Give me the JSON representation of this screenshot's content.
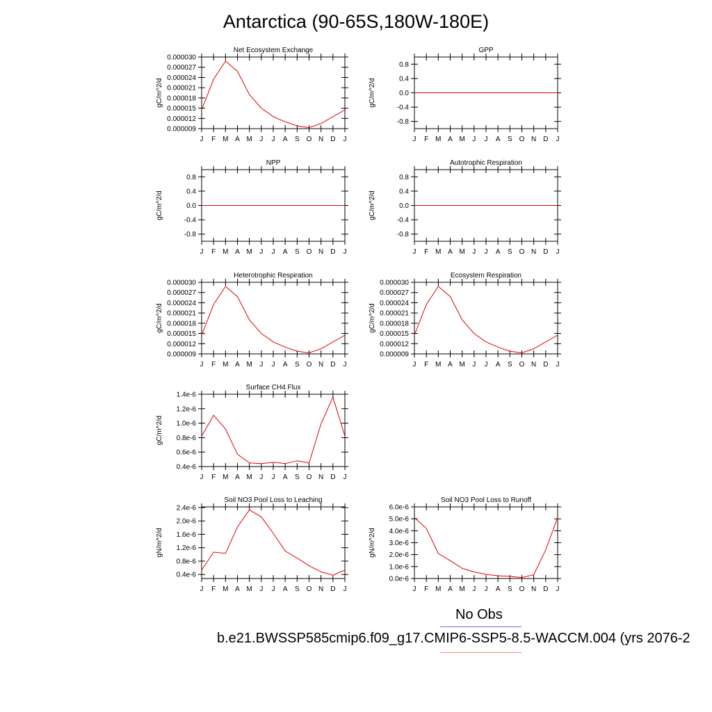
{
  "page": {
    "title": "Antarctica (90-65S,180W-180E)",
    "legend": {
      "obs_label": "No Obs",
      "case_label": "b.e21.BWSSP585cmip6.f09_g17.CMIP6-SSP5-8.5-WACCM.004 (yrs 2076-2",
      "obs_color": "#6a6aff",
      "case_color": "#ff8080"
    }
  },
  "chart_data": [
    {
      "id": "nee",
      "type": "line",
      "title": "Net Ecosystem Exchange",
      "xlabel": "",
      "ylabel": "gC/m^2/d",
      "x": [
        "J",
        "F",
        "M",
        "A",
        "M",
        "J",
        "J",
        "A",
        "S",
        "O",
        "N",
        "D",
        "J"
      ],
      "ylim": [
        9e-06,
        3e-05
      ],
      "yticks": [
        "0.000030",
        "0.000027",
        "0.000024",
        "0.000021",
        "0.000018",
        "0.000015",
        "0.000012",
        "0.000009"
      ],
      "ytick_values": [
        3e-05,
        2.7e-05,
        2.4e-05,
        2.1e-05,
        1.8e-05,
        1.5e-05,
        1.2e-05,
        9e-06
      ],
      "series": [
        {
          "values": [
            1.45e-05,
            2.35e-05,
            2.88e-05,
            2.58e-05,
            1.9e-05,
            1.5e-05,
            1.25e-05,
            1.1e-05,
            9.8e-06,
            9.3e-06,
            1.05e-05,
            1.25e-05,
            1.45e-05
          ],
          "color": "#e00000"
        }
      ]
    },
    {
      "id": "gpp",
      "type": "line",
      "title": "GPP",
      "xlabel": "",
      "ylabel": "gC/m^2/d",
      "x": [
        "J",
        "F",
        "M",
        "A",
        "M",
        "J",
        "J",
        "A",
        "S",
        "O",
        "N",
        "D",
        "J"
      ],
      "ylim": [
        -1,
        1
      ],
      "yticks": [
        "0.8",
        "0.4",
        "0.0",
        "-0.4",
        "-0.8"
      ],
      "ytick_values": [
        0.8,
        0.4,
        0,
        -0.4,
        -0.8
      ],
      "series": [
        {
          "values": [
            0,
            0,
            0,
            0,
            0,
            0,
            0,
            0,
            0,
            0,
            0,
            0,
            0
          ],
          "color": "#e00000"
        }
      ]
    },
    {
      "id": "npp",
      "type": "line",
      "title": "NPP",
      "xlabel": "",
      "ylabel": "gC/m^2/d",
      "x": [
        "J",
        "F",
        "M",
        "A",
        "M",
        "J",
        "J",
        "A",
        "S",
        "O",
        "N",
        "D",
        "J"
      ],
      "ylim": [
        -1,
        1
      ],
      "yticks": [
        "0.8",
        "0.4",
        "0.0",
        "-0.4",
        "-0.8"
      ],
      "ytick_values": [
        0.8,
        0.4,
        0,
        -0.4,
        -0.8
      ],
      "series": [
        {
          "values": [
            0,
            0,
            0,
            0,
            0,
            0,
            0,
            0,
            0,
            0,
            0,
            0,
            0
          ],
          "color": "#e00000"
        }
      ]
    },
    {
      "id": "ar",
      "type": "line",
      "title": "Autotrophic Respiration",
      "xlabel": "",
      "ylabel": "gC/m^2/d",
      "x": [
        "J",
        "F",
        "M",
        "A",
        "M",
        "J",
        "J",
        "A",
        "S",
        "O",
        "N",
        "D",
        "J"
      ],
      "ylim": [
        -1,
        1
      ],
      "yticks": [
        "0.8",
        "0.4",
        "0.0",
        "-0.4",
        "-0.8"
      ],
      "ytick_values": [
        0.8,
        0.4,
        0,
        -0.4,
        -0.8
      ],
      "series": [
        {
          "values": [
            0,
            0,
            0,
            0,
            0,
            0,
            0,
            0,
            0,
            0,
            0,
            0,
            0
          ],
          "color": "#e00000"
        }
      ]
    },
    {
      "id": "hr",
      "type": "line",
      "title": "Heterotrophic Respiration",
      "xlabel": "",
      "ylabel": "gC/m^2/d",
      "x": [
        "J",
        "F",
        "M",
        "A",
        "M",
        "J",
        "J",
        "A",
        "S",
        "O",
        "N",
        "D",
        "J"
      ],
      "ylim": [
        9e-06,
        3e-05
      ],
      "yticks": [
        "0.000030",
        "0.000027",
        "0.000024",
        "0.000021",
        "0.000018",
        "0.000015",
        "0.000012",
        "0.000009"
      ],
      "ytick_values": [
        3e-05,
        2.7e-05,
        2.4e-05,
        2.1e-05,
        1.8e-05,
        1.5e-05,
        1.2e-05,
        9e-06
      ],
      "series": [
        {
          "values": [
            1.45e-05,
            2.35e-05,
            2.88e-05,
            2.58e-05,
            1.9e-05,
            1.5e-05,
            1.25e-05,
            1.1e-05,
            9.8e-06,
            9.3e-06,
            1.05e-05,
            1.25e-05,
            1.45e-05
          ],
          "color": "#e00000"
        }
      ]
    },
    {
      "id": "er",
      "type": "line",
      "title": "Ecosystem Respiration",
      "xlabel": "",
      "ylabel": "gC/m^2/d",
      "x": [
        "J",
        "F",
        "M",
        "A",
        "M",
        "J",
        "J",
        "A",
        "S",
        "O",
        "N",
        "D",
        "J"
      ],
      "ylim": [
        9e-06,
        3e-05
      ],
      "yticks": [
        "0.000030",
        "0.000027",
        "0.000024",
        "0.000021",
        "0.000018",
        "0.000015",
        "0.000012",
        "0.000009"
      ],
      "ytick_values": [
        3e-05,
        2.7e-05,
        2.4e-05,
        2.1e-05,
        1.8e-05,
        1.5e-05,
        1.2e-05,
        9e-06
      ],
      "series": [
        {
          "values": [
            1.45e-05,
            2.35e-05,
            2.88e-05,
            2.58e-05,
            1.9e-05,
            1.5e-05,
            1.25e-05,
            1.1e-05,
            9.8e-06,
            9.3e-06,
            1.05e-05,
            1.25e-05,
            1.45e-05
          ],
          "color": "#e00000"
        }
      ]
    },
    {
      "id": "ch4",
      "type": "line",
      "title": "Surface CH4 Flux",
      "xlabel": "",
      "ylabel": "gC/m^2/d",
      "x": [
        "J",
        "F",
        "M",
        "A",
        "M",
        "J",
        "J",
        "A",
        "S",
        "O",
        "N",
        "D",
        "J"
      ],
      "ylim": [
        4e-07,
        1.4e-06
      ],
      "yticks": [
        "1.4e-6",
        "1.2e-6",
        "1.0e-6",
        "0.8e-6",
        "0.6e-6",
        "0.4e-6"
      ],
      "ytick_values": [
        1.4e-06,
        1.2e-06,
        1e-06,
        8e-07,
        6e-07,
        4e-07
      ],
      "series": [
        {
          "values": [
            8.2e-07,
            1.11e-06,
            9.2e-07,
            5.7e-07,
            4.5e-07,
            4.4e-07,
            4.6e-07,
            4.4e-07,
            4.8e-07,
            4.5e-07,
            9.9e-07,
            1.36e-06,
            8.2e-07
          ],
          "color": "#e00000"
        }
      ]
    },
    {
      "id": "leach",
      "type": "line",
      "title": "Soil NO3 Pool Loss to Leaching",
      "xlabel": "",
      "ylabel": "gN/m^2/d",
      "x": [
        "J",
        "F",
        "M",
        "A",
        "M",
        "J",
        "J",
        "A",
        "S",
        "O",
        "N",
        "D",
        "J"
      ],
      "ylim": [
        2.8e-07,
        2.42e-06
      ],
      "yticks": [
        "2.4e-6",
        "2.0e-6",
        "1.6e-6",
        "1.2e-6",
        "0.8e-6",
        "0.4e-6"
      ],
      "ytick_values": [
        2.4e-06,
        2e-06,
        1.6e-06,
        1.2e-06,
        8e-07,
        4e-07
      ],
      "series": [
        {
          "values": [
            5.3e-07,
            1.07e-06,
            1.03e-06,
            1.82e-06,
            2.33e-06,
            2.12e-06,
            1.63e-06,
            1.1e-06,
            8.9e-07,
            6.6e-07,
            4.8e-07,
            3.8e-07,
            5.3e-07
          ],
          "color": "#e00000"
        }
      ]
    },
    {
      "id": "runoff",
      "type": "line",
      "title": "Soil NO3 Pool Loss to Runoff",
      "xlabel": "",
      "ylabel": "gN/m^2/d",
      "x": [
        "J",
        "F",
        "M",
        "A",
        "M",
        "J",
        "J",
        "A",
        "S",
        "O",
        "N",
        "D",
        "J"
      ],
      "ylim": [
        0,
        6e-06
      ],
      "yticks": [
        "6.0e-6",
        "5.0e-6",
        "4.0e-6",
        "3.0e-6",
        "2.0e-6",
        "1.0e-6",
        "0.0e-6"
      ],
      "ytick_values": [
        6e-06,
        5e-06,
        4e-06,
        3e-06,
        2e-06,
        1e-06,
        0
      ],
      "series": [
        {
          "values": [
            5.1e-06,
            4.2e-06,
            2.1e-06,
            1.5e-06,
            8.5e-07,
            5.5e-07,
            3.5e-07,
            2.3e-07,
            1.8e-07,
            8e-08,
            3.2e-07,
            2.4e-06,
            5.1e-06
          ],
          "color": "#e00000"
        }
      ]
    }
  ]
}
